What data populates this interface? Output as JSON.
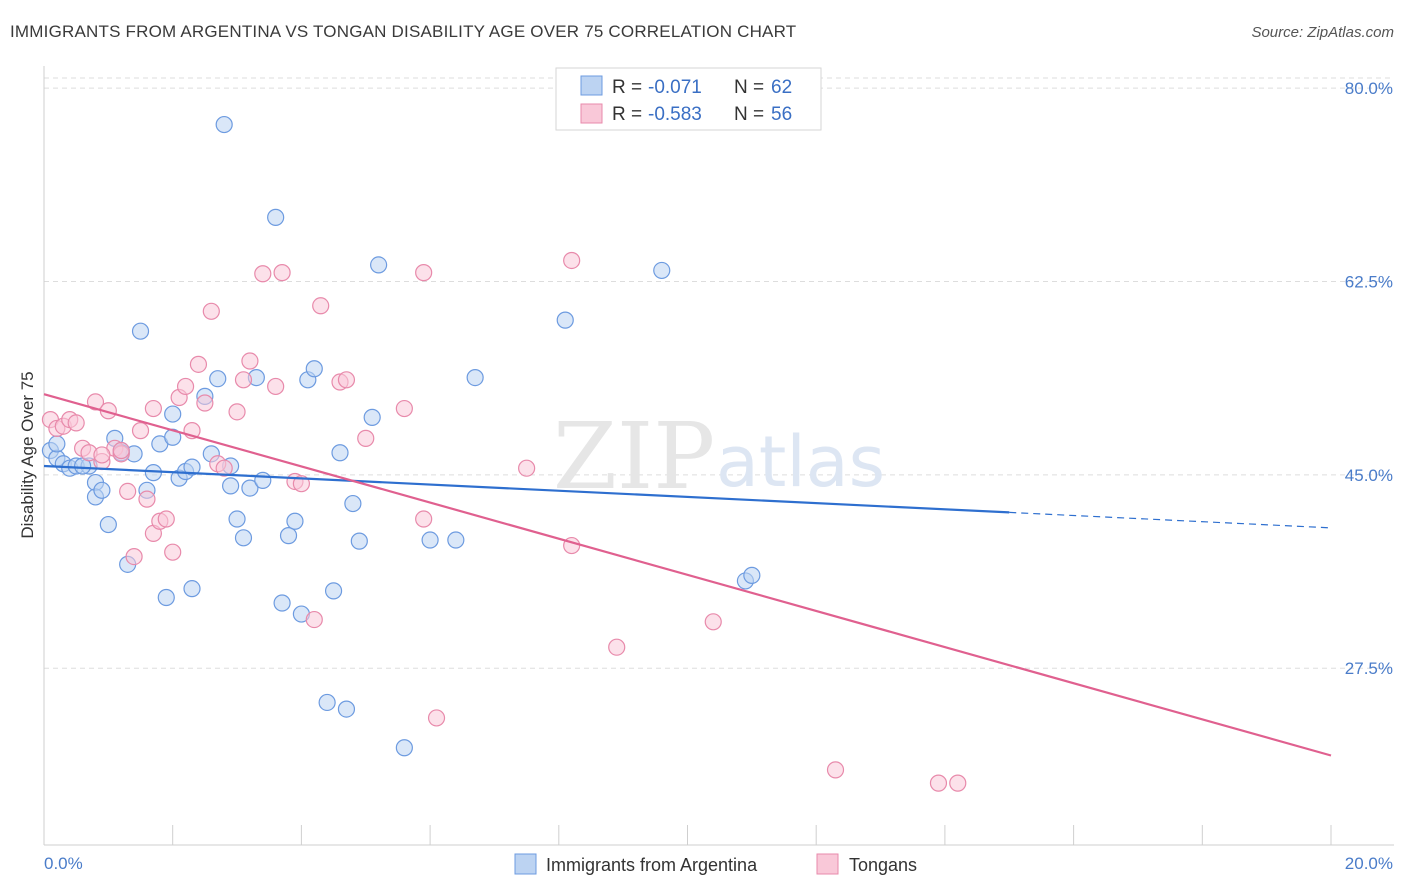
{
  "header": {
    "title": "IMMIGRANTS FROM ARGENTINA VS TONGAN DISABILITY AGE OVER 75 CORRELATION CHART",
    "source": "Source: ZipAtlas.com"
  },
  "watermark": {
    "zip": "ZIP",
    "atlas": "atlas"
  },
  "colors": {
    "argentina_fill": "#bcd3f2",
    "argentina_stroke": "#6d9be0",
    "argentina_line": "#2e6fcf",
    "tongan_fill": "#f9c8d8",
    "tongan_stroke": "#e88aab",
    "tongan_line": "#e0608f",
    "grid": "#dddddd",
    "tick_text": "#4a7cc9"
  },
  "legend": {
    "rows": [
      {
        "r_label": "R =",
        "r_value": "-0.071",
        "n_label": "N =",
        "n_value": "62"
      },
      {
        "r_label": "R =",
        "r_value": "-0.583",
        "n_label": "N =",
        "n_value": "56"
      }
    ]
  },
  "bottom_legend": [
    "Immigrants from Argentina",
    "Tongans"
  ],
  "chart_data": {
    "type": "scatter",
    "title": "IMMIGRANTS FROM ARGENTINA VS TONGAN DISABILITY AGE OVER 75 CORRELATION CHART",
    "xlabel": "",
    "ylabel": "Disability Age Over 75",
    "xlim": [
      0,
      20
    ],
    "ylim": [
      11.5,
      82
    ],
    "x_tick_labels": [
      "0.0%",
      "20.0%"
    ],
    "y_ticks": [
      27.5,
      45.0,
      62.5,
      80.0
    ],
    "y_tick_labels": [
      "27.5%",
      "45.0%",
      "62.5%",
      "80.0%"
    ],
    "grid": true,
    "legend_position": "top-center",
    "series": [
      {
        "name": "Immigrants from Argentina",
        "points": [
          [
            0.1,
            47.2
          ],
          [
            0.2,
            46.5
          ],
          [
            0.3,
            46.0
          ],
          [
            0.4,
            45.6
          ],
          [
            0.5,
            45.8
          ],
          [
            0.7,
            45.8
          ],
          [
            0.8,
            44.3
          ],
          [
            0.8,
            43.0
          ],
          [
            0.9,
            43.6
          ],
          [
            1.0,
            40.5
          ],
          [
            1.1,
            48.3
          ],
          [
            1.2,
            47.2
          ],
          [
            1.3,
            36.9
          ],
          [
            1.4,
            46.9
          ],
          [
            1.5,
            58.0
          ],
          [
            1.6,
            43.6
          ],
          [
            1.7,
            45.2
          ],
          [
            1.8,
            47.8
          ],
          [
            1.9,
            33.9
          ],
          [
            2.0,
            48.4
          ],
          [
            2.0,
            50.5
          ],
          [
            2.1,
            44.7
          ],
          [
            2.2,
            45.3
          ],
          [
            2.3,
            45.7
          ],
          [
            2.3,
            34.7
          ],
          [
            2.5,
            52.1
          ],
          [
            2.6,
            46.9
          ],
          [
            2.7,
            53.7
          ],
          [
            2.8,
            76.7
          ],
          [
            2.9,
            45.8
          ],
          [
            3.0,
            41.0
          ],
          [
            3.1,
            39.3
          ],
          [
            3.2,
            43.8
          ],
          [
            3.3,
            53.8
          ],
          [
            3.4,
            44.5
          ],
          [
            3.6,
            68.3
          ],
          [
            3.7,
            33.4
          ],
          [
            3.8,
            39.5
          ],
          [
            3.9,
            40.8
          ],
          [
            4.0,
            32.4
          ],
          [
            4.1,
            53.6
          ],
          [
            4.2,
            54.6
          ],
          [
            4.4,
            24.4
          ],
          [
            4.5,
            34.5
          ],
          [
            4.6,
            47.0
          ],
          [
            4.7,
            23.8
          ],
          [
            4.8,
            42.4
          ],
          [
            4.9,
            39.0
          ],
          [
            5.1,
            50.2
          ],
          [
            5.2,
            64.0
          ],
          [
            5.6,
            20.3
          ],
          [
            6.0,
            39.1
          ],
          [
            6.4,
            39.1
          ],
          [
            6.7,
            53.8
          ],
          [
            8.1,
            59.0
          ],
          [
            9.6,
            63.5
          ],
          [
            10.9,
            35.4
          ],
          [
            11.0,
            35.9
          ],
          [
            0.2,
            47.8
          ],
          [
            0.6,
            45.8
          ],
          [
            1.2,
            47.0
          ],
          [
            2.9,
            44.0
          ]
        ],
        "trend": {
          "x": [
            0,
            15
          ],
          "y": [
            45.8,
            41.6
          ]
        },
        "trend_dashed": {
          "x": [
            15,
            20
          ],
          "y": [
            41.6,
            40.2
          ]
        }
      },
      {
        "name": "Tongans",
        "points": [
          [
            0.1,
            50.0
          ],
          [
            0.2,
            49.2
          ],
          [
            0.3,
            49.4
          ],
          [
            0.4,
            50.0
          ],
          [
            0.5,
            49.7
          ],
          [
            0.6,
            47.4
          ],
          [
            0.7,
            47.0
          ],
          [
            0.8,
            51.6
          ],
          [
            0.9,
            46.2
          ],
          [
            1.0,
            50.8
          ],
          [
            1.1,
            47.4
          ],
          [
            1.2,
            46.9
          ],
          [
            1.3,
            43.5
          ],
          [
            1.4,
            37.6
          ],
          [
            1.5,
            49.0
          ],
          [
            1.6,
            42.8
          ],
          [
            1.7,
            39.7
          ],
          [
            1.7,
            51.0
          ],
          [
            1.8,
            40.8
          ],
          [
            1.9,
            41.0
          ],
          [
            2.0,
            38.0
          ],
          [
            2.1,
            52.0
          ],
          [
            2.2,
            53.0
          ],
          [
            2.3,
            49.0
          ],
          [
            2.4,
            55.0
          ],
          [
            2.5,
            51.5
          ],
          [
            2.6,
            59.8
          ],
          [
            2.7,
            46.0
          ],
          [
            3.0,
            50.7
          ],
          [
            3.1,
            53.6
          ],
          [
            3.2,
            55.3
          ],
          [
            3.4,
            63.2
          ],
          [
            3.6,
            53.0
          ],
          [
            3.7,
            63.3
          ],
          [
            3.9,
            44.4
          ],
          [
            4.0,
            44.2
          ],
          [
            4.2,
            31.9
          ],
          [
            4.3,
            60.3
          ],
          [
            4.6,
            53.4
          ],
          [
            4.7,
            53.6
          ],
          [
            5.0,
            48.3
          ],
          [
            5.6,
            51.0
          ],
          [
            5.9,
            41.0
          ],
          [
            5.9,
            63.3
          ],
          [
            6.1,
            23.0
          ],
          [
            7.5,
            45.6
          ],
          [
            8.2,
            64.4
          ],
          [
            8.2,
            38.6
          ],
          [
            8.9,
            29.4
          ],
          [
            10.4,
            31.7
          ],
          [
            12.3,
            18.3
          ],
          [
            13.9,
            17.1
          ],
          [
            14.2,
            17.1
          ],
          [
            1.2,
            47.2
          ],
          [
            0.9,
            46.8
          ],
          [
            2.8,
            45.6
          ]
        ],
        "trend": {
          "x": [
            0,
            20
          ],
          "y": [
            52.3,
            19.6
          ]
        }
      }
    ]
  }
}
